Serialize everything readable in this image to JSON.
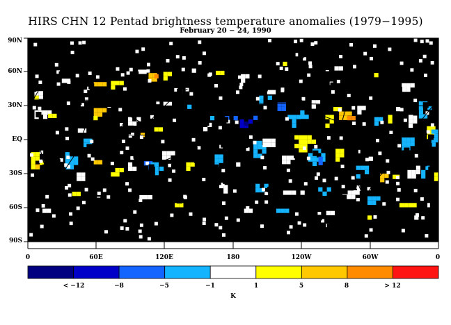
{
  "title": "HIRS CHN 12 Pentad brightness temperature anomalies (1979−1995)",
  "subtitle": "February 20 − 24, 1990",
  "y_axis_labels": [
    "90N",
    "60N",
    "30N",
    "EQ",
    "30S",
    "60S",
    "90S"
  ],
  "x_axis_labels": [
    "0",
    "60E",
    "120E",
    "180",
    "120W",
    "60W",
    "0"
  ],
  "colorbar": {
    "colors": [
      "#000080",
      "#0000c8",
      "#1464ff",
      "#14b4ff",
      "#ffffff",
      "#ffff00",
      "#ffc800",
      "#ff8c00",
      "#ff1414"
    ],
    "labels": [
      "< −12",
      "−8",
      "−5",
      "−1",
      "1",
      "5",
      "8",
      "> 12"
    ],
    "unit": "K"
  },
  "map": {
    "missing_color": "#000000",
    "land_outline_color": "#000000"
  }
}
